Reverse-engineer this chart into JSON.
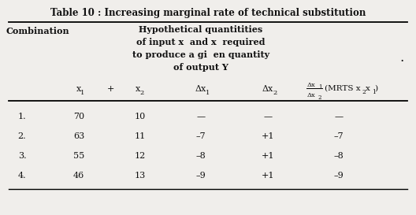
{
  "title": "Table 10 : Increasing marginal rate of technical substitution",
  "subtitle_lines": [
    "Hypothetical quantitities",
    "of input x  and x  required",
    "to produce a gi  en quantity",
    "of output Y"
  ],
  "rows": [
    [
      "1.",
      "70",
      "10",
      "—",
      "—",
      "—"
    ],
    [
      "2.",
      "63",
      "11",
      "–7",
      "+1",
      "–7"
    ],
    [
      "3.",
      "55",
      "12",
      "–8",
      "+1",
      "–8"
    ],
    [
      "4.",
      "46",
      "13",
      "–9",
      "+1",
      "–9"
    ]
  ],
  "combination_label": "Combination",
  "bg_color": "#f0eeeb",
  "text_color": "#111111",
  "title_fontsize": 8.5,
  "body_fontsize": 8.0
}
